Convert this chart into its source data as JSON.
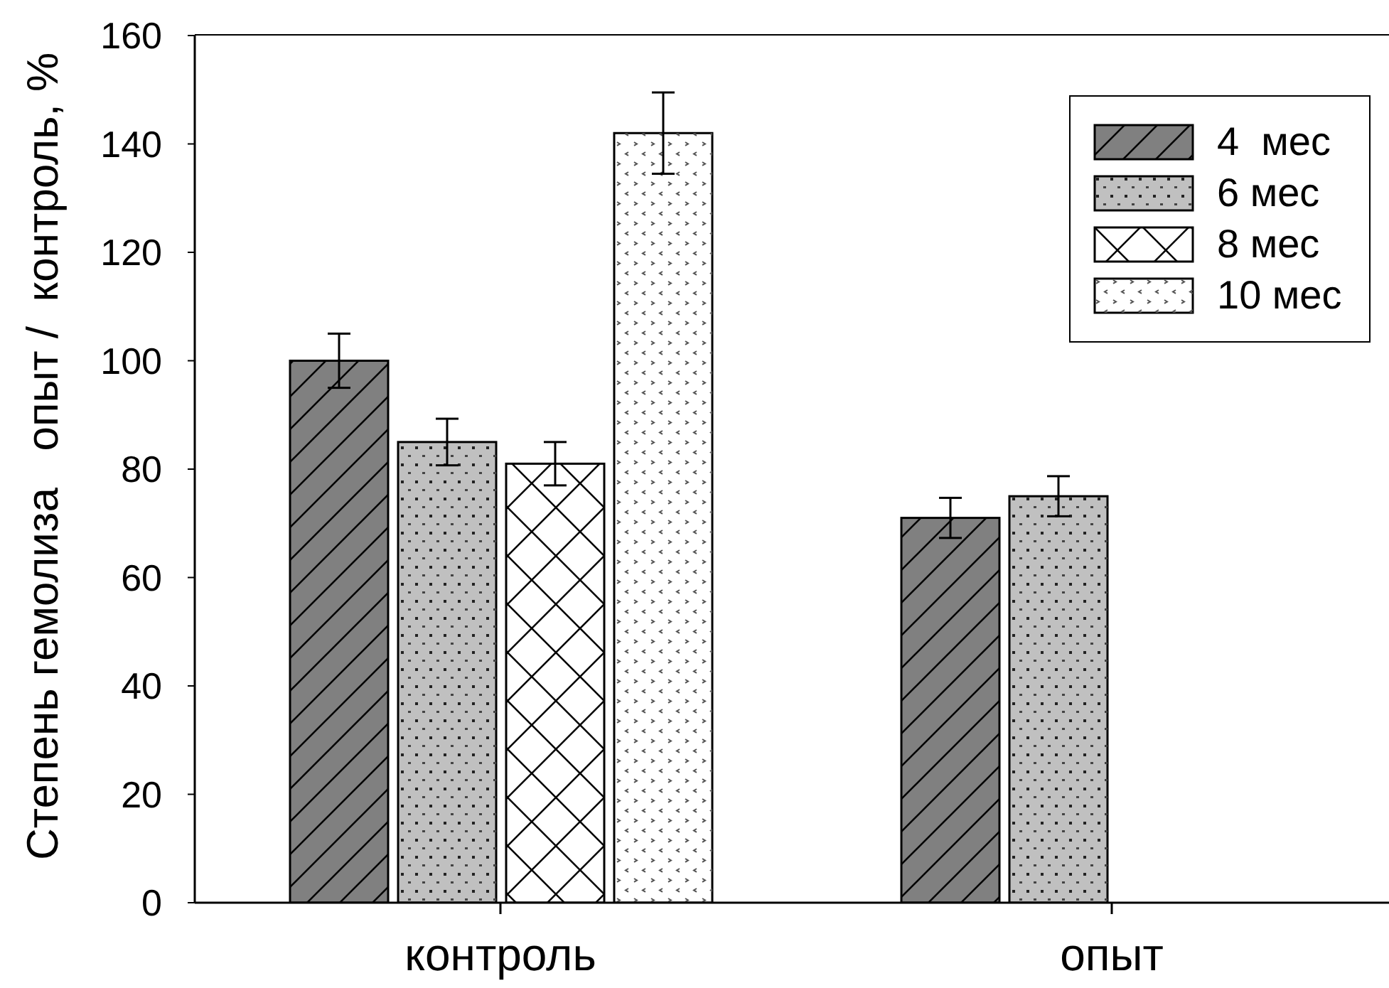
{
  "chart_data": {
    "type": "bar",
    "ylabel": "Степень гемолиза   опыт /  контроль, %",
    "categories": [
      "контроль",
      "опыт"
    ],
    "series": [
      {
        "name": "4  мес",
        "color": "#808080",
        "values": [
          100,
          71
        ],
        "errors": [
          5,
          3.7
        ]
      },
      {
        "name": "6 мес",
        "color": "#c0c0c0",
        "values": [
          85,
          75
        ],
        "errors": [
          4.3,
          3.7
        ]
      },
      {
        "name": "8 мес",
        "color": "#ffffff",
        "values": [
          81,
          null
        ],
        "errors": [
          4,
          null
        ]
      },
      {
        "name": "10 мес",
        "color": "#ffffff",
        "values": [
          142,
          null
        ],
        "errors": [
          7.5,
          null
        ]
      }
    ],
    "ylim": [
      0,
      160
    ],
    "yticks": [
      0,
      20,
      40,
      60,
      80,
      100,
      120,
      140,
      160
    ],
    "legend": "top right"
  }
}
